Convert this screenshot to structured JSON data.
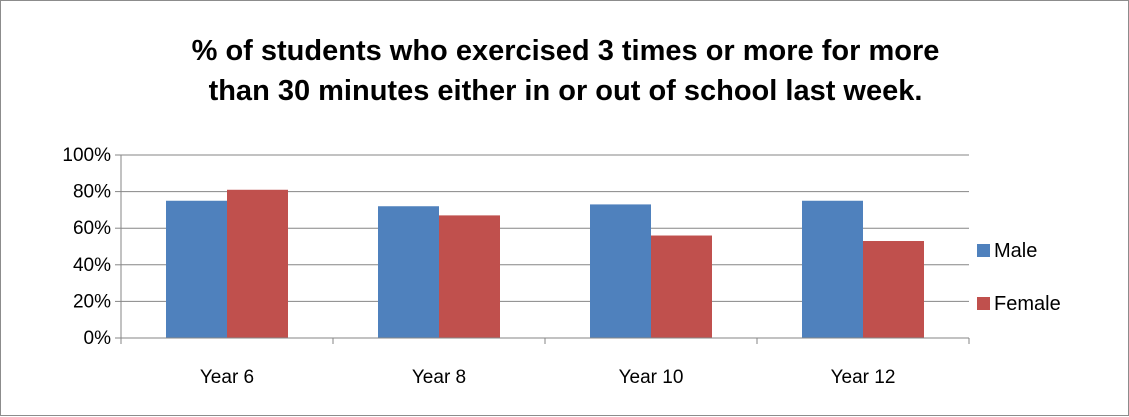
{
  "chart_data": {
    "type": "bar",
    "title_lines": [
      "% of students who exercised 3 times or more for more",
      "than 30 minutes either in or out of school last week."
    ],
    "categories": [
      "Year 6",
      "Year 8",
      "Year 10",
      "Year 12"
    ],
    "series": [
      {
        "name": "Male",
        "color": "#4f81bd",
        "values": [
          75,
          72,
          73,
          75
        ]
      },
      {
        "name": "Female",
        "color": "#c0504d",
        "values": [
          81,
          67,
          56,
          53
        ]
      }
    ],
    "y_ticks": [
      {
        "value": 0,
        "label": "0%"
      },
      {
        "value": 20,
        "label": "20%"
      },
      {
        "value": 40,
        "label": "40%"
      },
      {
        "value": 60,
        "label": "60%"
      },
      {
        "value": 80,
        "label": "80%"
      },
      {
        "value": 100,
        "label": "100%"
      }
    ],
    "ylim": [
      0,
      100
    ],
    "grid": true,
    "legend_position": "right"
  }
}
